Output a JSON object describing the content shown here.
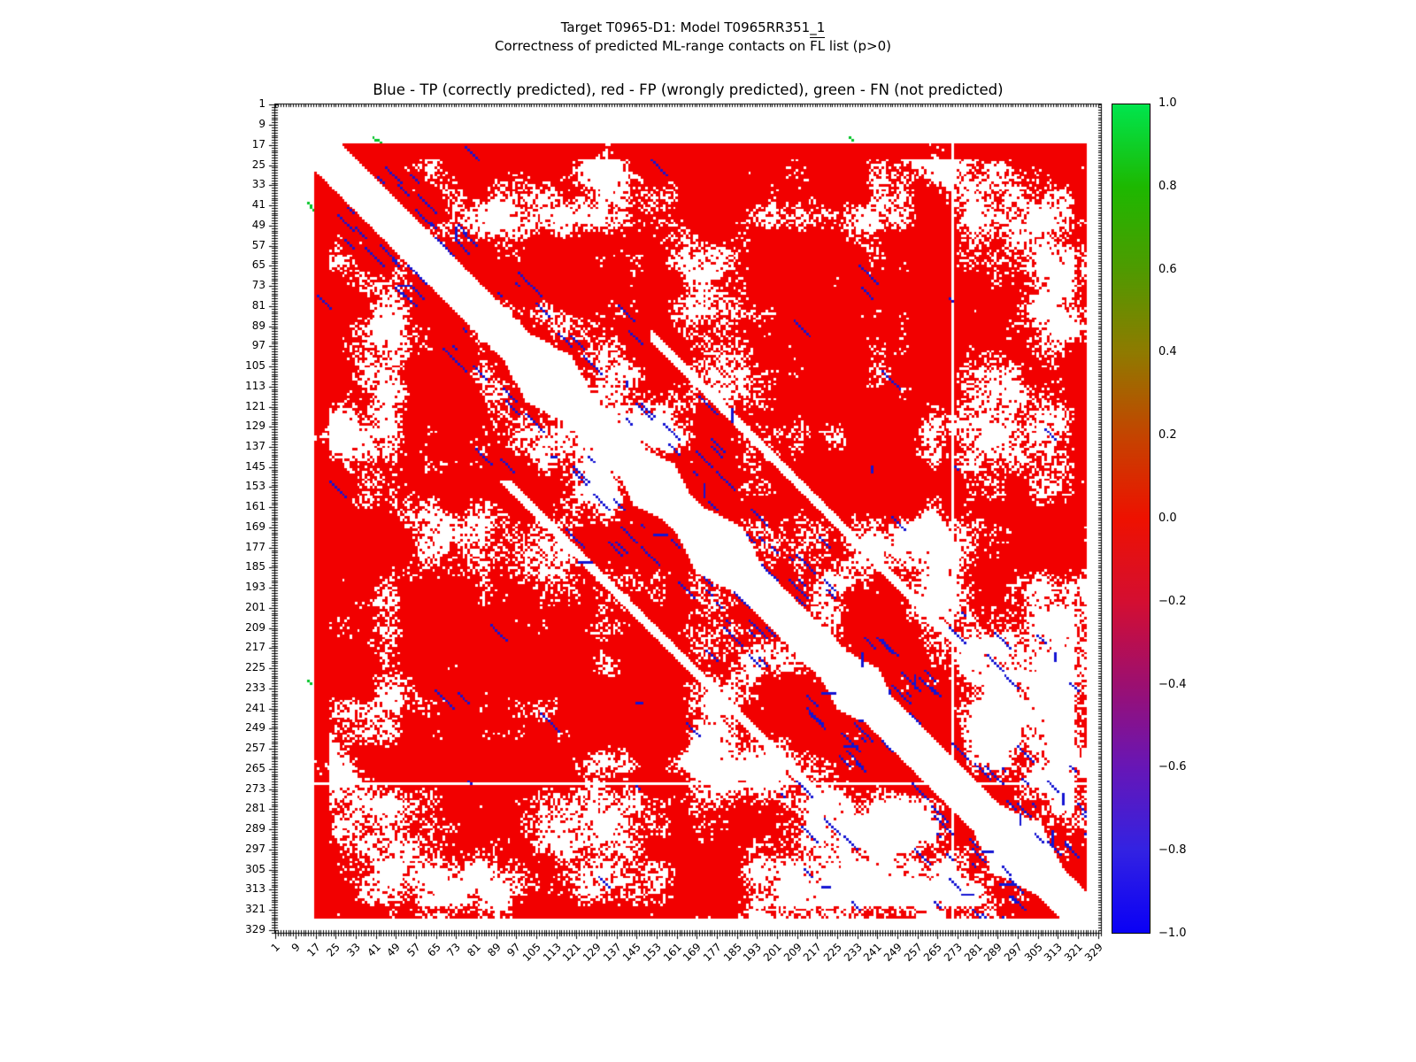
{
  "figure": {
    "title_line1": "Target T0965-D1: Model T0965RR351_1",
    "title_line2_pre": "Correctness of predicted ML-range contacts on ",
    "title_line2_overline": "FL",
    "title_line2_post": " list (p>0)",
    "axes_title": "Blue - TP (correctly predicted), red - FP (wrongly predicted), green - FN (not predicted)"
  },
  "chart_data": {
    "type": "heatmap",
    "subtype": "protein-residue-contact-map",
    "title": "Blue - TP (correctly predicted), red - FP (wrongly predicted), green - FN (not predicted)",
    "suptitle": [
      "Target T0965-D1: Model T0965RR351_1",
      "Correctness of predicted ML-range contacts on FL list (p>0)"
    ],
    "background": "#ffffff",
    "x_axis": {
      "range": [
        1,
        330
      ],
      "major_tick_step": 8,
      "tick_labels": [
        1,
        9,
        17,
        25,
        33,
        41,
        49,
        57,
        65,
        73,
        81,
        89,
        97,
        105,
        113,
        121,
        129,
        137,
        145,
        153,
        161,
        169,
        177,
        185,
        193,
        201,
        209,
        217,
        225,
        233,
        241,
        249,
        257,
        265,
        273,
        281,
        289,
        297,
        305,
        313,
        321,
        329
      ]
    },
    "y_axis": {
      "range": [
        1,
        330
      ],
      "major_tick_step": 8,
      "tick_labels": [
        1,
        9,
        17,
        25,
        33,
        41,
        49,
        57,
        65,
        73,
        81,
        89,
        97,
        105,
        113,
        121,
        129,
        137,
        145,
        153,
        161,
        169,
        177,
        185,
        193,
        201,
        209,
        217,
        225,
        233,
        241,
        249,
        257,
        265,
        273,
        281,
        289,
        297,
        305,
        313,
        321,
        329
      ]
    },
    "legend": {
      "TP": {
        "meaning": "correctly predicted",
        "color": "#1414d2"
      },
      "FP": {
        "meaning": "wrongly predicted",
        "color": "#f20000"
      },
      "FN": {
        "meaning": "not predicted",
        "color": "#00c426"
      }
    },
    "colorbar": {
      "range": [
        -1,
        1
      ],
      "tick_labels": [
        "1.0",
        "0.8",
        "0.6",
        "0.4",
        "0.2",
        "0.0",
        "−0.2",
        "−0.4",
        "−0.6",
        "−0.8",
        "−1.0"
      ],
      "stops": [
        {
          "value": 1.0,
          "color": "#00e54d"
        },
        {
          "value": 0.8,
          "color": "#1db800"
        },
        {
          "value": 0.6,
          "color": "#4f9a00"
        },
        {
          "value": 0.4,
          "color": "#8f7a00"
        },
        {
          "value": 0.2,
          "color": "#c44400"
        },
        {
          "value": 0.0,
          "color": "#ee1100"
        },
        {
          "value": -0.2,
          "color": "#d40e31"
        },
        {
          "value": -0.4,
          "color": "#9c0f70"
        },
        {
          "value": -0.6,
          "color": "#6716b6"
        },
        {
          "value": -0.8,
          "color": "#3322e2"
        },
        {
          "value": -1.0,
          "color": "#0a00f5"
        }
      ]
    },
    "matrix": {
      "n": 330,
      "contact_block": [
        17,
        324
      ],
      "diagonal_gap_halfwidth": 10,
      "diagonal_bulges": [
        {
          "center": 110,
          "halfwidth": 14,
          "extra": 8
        },
        {
          "center": 152,
          "halfwidth": 10,
          "extra": 6
        },
        {
          "center": 178,
          "halfwidth": 12,
          "extra": 8
        },
        {
          "center": 233,
          "halfwidth": 10,
          "extra": 6
        },
        {
          "center": 297,
          "halfwidth": 14,
          "extra": 9
        }
      ],
      "parallel_gap": {
        "offset": 58,
        "halfwidth": 2,
        "min_col": 150
      },
      "chain_break_lines": [
        271
      ],
      "fn_cells": [
        [
          14,
          40
        ],
        [
          15,
          41
        ],
        [
          15,
          42
        ],
        [
          16,
          43
        ],
        [
          40,
          14
        ],
        [
          41,
          15
        ],
        [
          42,
          15
        ],
        [
          43,
          16
        ],
        [
          14,
          230
        ],
        [
          15,
          231
        ],
        [
          230,
          14
        ],
        [
          231,
          15
        ]
      ],
      "render_seed": 1337,
      "white_threshold": 0.56,
      "tp_run_count": 110,
      "description": "Symmetric residue-residue map, residues ~17-324 in contact block; dominated by FP (red) with irregular white uncontacted blobs, a white near-diagonal exclusion band, TP (blue) runs hugging the diagonal band and scattered clusters, and a few FN (green) cells near residues 14-16 vs 40-43 and 230-231. Texture is procedurally regenerated from these parameters."
    }
  }
}
